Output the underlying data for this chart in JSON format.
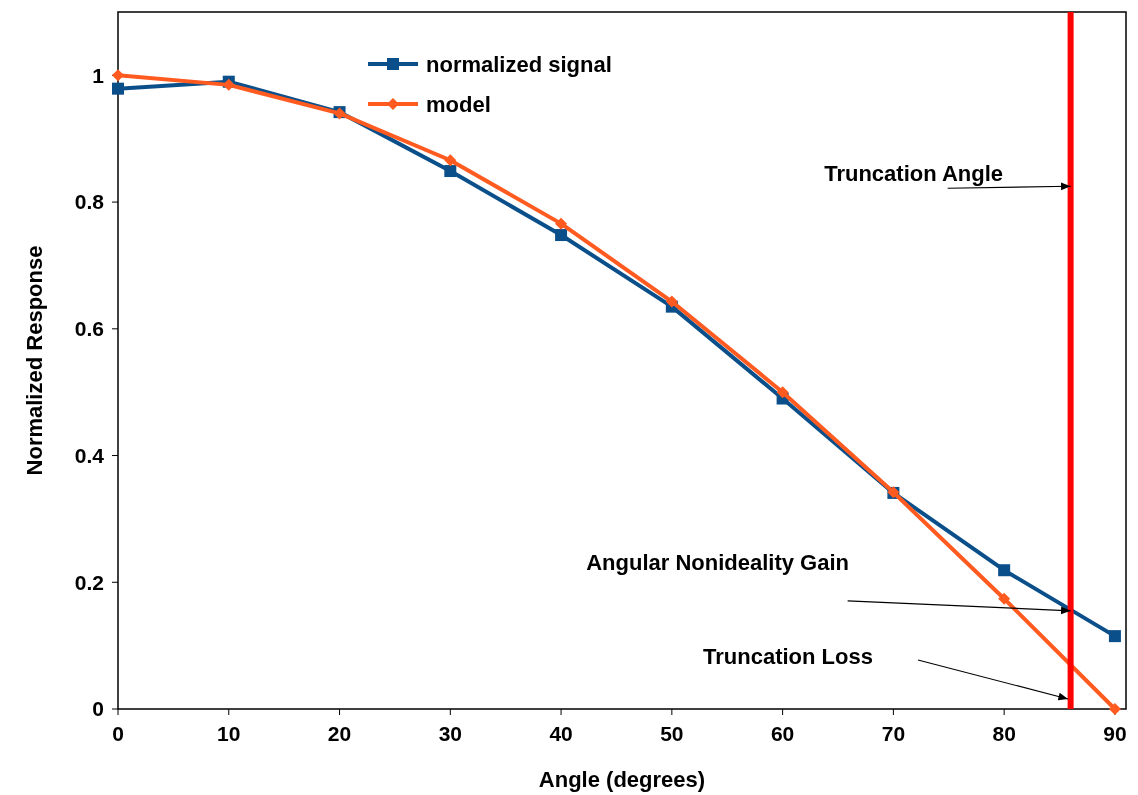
{
  "chart_data": {
    "type": "line",
    "xlabel": "Angle (degrees)",
    "ylabel": "Normalized Response",
    "x": [
      0,
      10,
      20,
      30,
      40,
      50,
      60,
      70,
      80,
      90
    ],
    "series": [
      {
        "name": "normalized signal",
        "color": "#0b4f8a",
        "marker": "square",
        "values": [
          0.979,
          0.99,
          0.942,
          0.849,
          0.748,
          0.635,
          0.49,
          0.341,
          0.219,
          0.115
        ]
      },
      {
        "name": "model",
        "color": "#ff5a1f",
        "marker": "diamond",
        "values": [
          1.0,
          0.985,
          0.94,
          0.866,
          0.766,
          0.643,
          0.5,
          0.342,
          0.174,
          0
        ]
      }
    ],
    "xlim": [
      0,
      91
    ],
    "xticks": [
      0,
      10,
      20,
      30,
      40,
      50,
      60,
      70,
      80,
      90
    ],
    "ylim": [
      0,
      1.1
    ],
    "yticks": [
      0,
      0.2,
      0.4,
      0.6,
      0.8,
      1
    ],
    "grid": false,
    "legend": "top",
    "ref_lines": [
      {
        "axis": "x",
        "value": 86,
        "color": "#ff0000"
      }
    ],
    "annotations": [
      {
        "text": "Truncation Angle",
        "x": 86,
        "y": 0.825
      },
      {
        "text": "Angular Nonideality Gain",
        "x": 86,
        "y": 0.155
      },
      "Truncation Loss"
    ]
  }
}
